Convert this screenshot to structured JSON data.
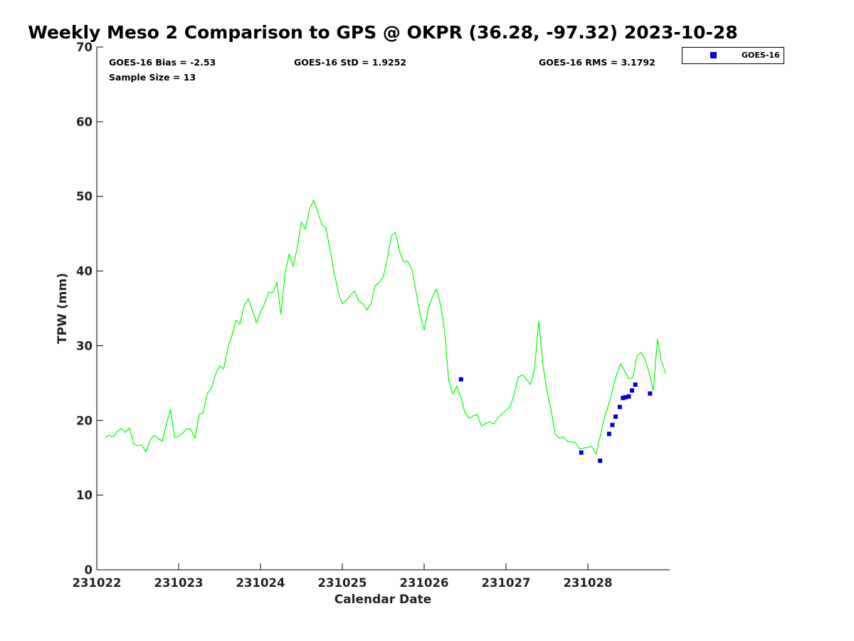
{
  "chart_data": {
    "type": "scatter",
    "title": "Weekly Meso 2 Comparison to GPS @ OKPR (36.28, -97.32) 2023-10-28",
    "xlabel": "Calendar Date",
    "ylabel": "TPW (mm)",
    "xlim": [
      231022.0,
      231029.0
    ],
    "ylim": [
      0,
      70
    ],
    "xticks": [
      "231022",
      "231023",
      "231024",
      "231025",
      "231026",
      "231027",
      "231028"
    ],
    "yticks": [
      "0",
      "10",
      "20",
      "30",
      "40",
      "50",
      "60",
      "70"
    ],
    "grid": false,
    "legend": {
      "placement": "outside-top-right",
      "entries": [
        "GOES-16"
      ]
    },
    "stats": {
      "bias": "GOES-16 Bias = -2.53",
      "std": "GOES-16 StD = 1.9252",
      "rms": "GOES-16 RMS = 3.1792",
      "sample": "Sample Size = 13"
    },
    "series": [
      {
        "kind": "line",
        "color": "#00ff00",
        "x": [
          231022.1,
          231022.15,
          231022.2,
          231022.25,
          231022.3,
          231022.35,
          231022.4,
          231022.45,
          231022.5,
          231022.55,
          231022.6,
          231022.65,
          231022.7,
          231022.75,
          231022.8,
          231022.85,
          231022.9,
          231022.95,
          231023.0,
          231023.05,
          231023.1,
          231023.15,
          231023.2,
          231023.25,
          231023.3,
          231023.35,
          231023.4,
          231023.45,
          231023.5,
          231023.55,
          231023.6,
          231023.65,
          231023.7,
          231023.75,
          231023.8,
          231023.85,
          231023.9,
          231023.95,
          231024.0,
          231024.05,
          231024.1,
          231024.15,
          231024.2,
          231024.25,
          231024.3,
          231024.35,
          231024.4,
          231024.45,
          231024.5,
          231024.55,
          231024.6,
          231024.65,
          231024.7,
          231024.75,
          231024.8,
          231024.85,
          231024.9,
          231024.95,
          231025.0,
          231025.05,
          231025.1,
          231025.15,
          231025.2,
          231025.25,
          231025.3,
          231025.35,
          231025.4,
          231025.45,
          231025.5,
          231025.55,
          231025.6,
          231025.65,
          231025.7,
          231025.75,
          231025.8,
          231025.85,
          231025.9,
          231025.95,
          231026.0,
          231026.05,
          231026.1,
          231026.15,
          231026.2,
          231026.25,
          231026.3,
          231026.35,
          231026.4,
          231026.45,
          231026.5,
          231026.55,
          231026.6,
          231026.65,
          231026.7,
          231026.75,
          231026.8,
          231026.85,
          231026.9,
          231026.95,
          231027.0,
          231027.05,
          231027.1,
          231027.15,
          231027.2,
          231027.25,
          231027.3,
          231027.35,
          231027.4,
          231027.45,
          231027.5,
          231027.55,
          231027.6,
          231027.65,
          231027.7,
          231027.75,
          231027.8,
          231027.85,
          231027.9,
          231027.95,
          231028.0,
          231028.05,
          231028.1,
          231028.15,
          231028.2,
          231028.25,
          231028.3,
          231028.35,
          231028.4,
          231028.45,
          231028.5,
          231028.55,
          231028.6,
          231028.65,
          231028.7,
          231028.75,
          231028.8,
          231028.85,
          231028.9,
          231028.95
        ],
        "y": [
          17.7,
          18.0,
          17.8,
          18.5,
          18.9,
          18.4,
          19.0,
          16.9,
          16.6,
          16.7,
          15.8,
          17.3,
          18.0,
          17.6,
          17.2,
          19.5,
          21.5,
          17.7,
          17.9,
          18.3,
          18.9,
          18.8,
          17.6,
          20.8,
          21.0,
          23.6,
          24.3,
          26.2,
          27.3,
          26.9,
          29.6,
          31.3,
          33.4,
          32.9,
          35.4,
          36.3,
          34.8,
          33.1,
          34.5,
          35.6,
          37.2,
          37.1,
          38.5,
          34.2,
          39.6,
          42.3,
          40.6,
          43.2,
          46.6,
          45.6,
          48.3,
          49.5,
          47.9,
          46.2,
          45.8,
          42.8,
          39.8,
          37.2,
          35.6,
          36.1,
          36.8,
          37.3,
          36.0,
          35.6,
          34.8,
          35.6,
          38.0,
          38.5,
          39.2,
          41.7,
          44.7,
          45.2,
          42.6,
          41.2,
          41.3,
          40.2,
          37.3,
          34.2,
          32.1,
          35.0,
          36.5,
          37.6,
          35.5,
          32.0,
          25.3,
          23.5,
          24.6,
          23.0,
          21.0,
          20.3,
          20.6,
          20.8,
          19.2,
          19.6,
          19.8,
          19.5,
          20.4,
          20.8,
          21.4,
          21.8,
          23.5,
          25.8,
          26.1,
          25.5,
          24.8,
          27.0,
          33.3,
          27.5,
          24.0,
          21.5,
          18.2,
          17.6,
          17.8,
          17.2,
          17.1,
          17.0,
          16.2,
          16.3,
          16.4,
          16.5,
          15.5,
          17.8,
          20.3,
          22.0,
          24.0,
          26.1,
          27.6,
          26.6,
          25.6,
          25.7,
          28.6,
          29.1,
          28.2,
          26.3,
          24.0,
          30.9,
          27.9,
          26.3
        ]
      },
      {
        "name": "GOES-16",
        "kind": "markers",
        "color": "#0000dd",
        "x": [
          231026.45,
          231027.92,
          231028.15,
          231028.26,
          231028.3,
          231028.34,
          231028.39,
          231028.43,
          231028.46,
          231028.5,
          231028.54,
          231028.58,
          231028.76
        ],
        "y": [
          25.5,
          15.7,
          14.6,
          18.2,
          19.4,
          20.5,
          21.8,
          23.0,
          23.1,
          23.2,
          24.0,
          24.8,
          23.6
        ]
      }
    ]
  }
}
